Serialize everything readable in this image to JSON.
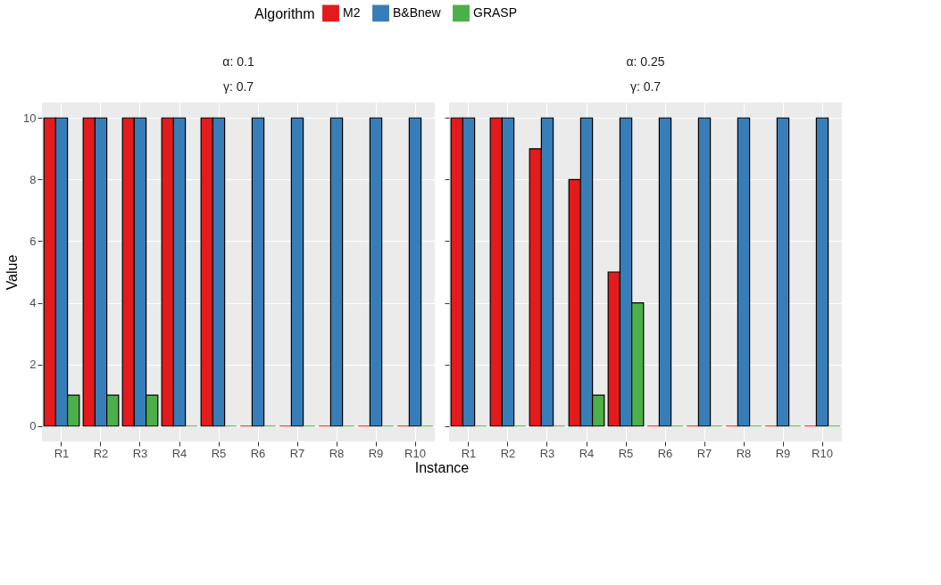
{
  "chart_data": [
    {
      "type": "bar",
      "title": "α: 0.1",
      "subtitle": "γ: 0.7",
      "xlabel": "Instance",
      "ylabel": "Value",
      "legend_title": "Algorithm",
      "legend": "top",
      "grid": true,
      "categories": [
        "R1",
        "R2",
        "R3",
        "R4",
        "R5",
        "R6",
        "R7",
        "R8",
        "R9",
        "R10"
      ],
      "ylim": [
        -0.5,
        10.5
      ],
      "yticks": [
        0,
        2,
        4,
        6,
        8,
        10
      ],
      "series": [
        {
          "name": "M2",
          "color": "#e41a1c",
          "values": [
            10,
            10,
            10,
            10,
            10,
            0,
            0,
            0,
            0,
            0
          ]
        },
        {
          "name": "B&Bnew",
          "color": "#377eb8",
          "values": [
            10,
            10,
            10,
            10,
            10,
            10,
            10,
            10,
            10,
            10
          ]
        },
        {
          "name": "GRASP",
          "color": "#4daf4a",
          "values": [
            1,
            1,
            1,
            0,
            0,
            0,
            0,
            0,
            0,
            0
          ]
        }
      ]
    },
    {
      "type": "bar",
      "title": "α: 0.25",
      "subtitle": "γ: 0.7",
      "grid": true,
      "tick_labels": "x",
      "categories": [
        "R1",
        "R2",
        "R3",
        "R4",
        "R5",
        "R6",
        "R7",
        "R8",
        "R9",
        "R10"
      ],
      "ylim": [
        -0.5,
        10.5
      ],
      "yticks": [
        0,
        2,
        4,
        6,
        8,
        10
      ],
      "series": [
        {
          "name": "M2",
          "color": "#e41a1c",
          "values": [
            10,
            10,
            9,
            8,
            5,
            0,
            0,
            0,
            0,
            0
          ]
        },
        {
          "name": "B&Bnew",
          "color": "#377eb8",
          "values": [
            10,
            10,
            10,
            10,
            10,
            10,
            10,
            10,
            10,
            10
          ]
        },
        {
          "name": "GRASP",
          "color": "#4daf4a",
          "values": [
            0,
            0,
            0,
            1,
            4,
            0,
            0,
            0,
            0,
            0
          ]
        }
      ]
    }
  ]
}
